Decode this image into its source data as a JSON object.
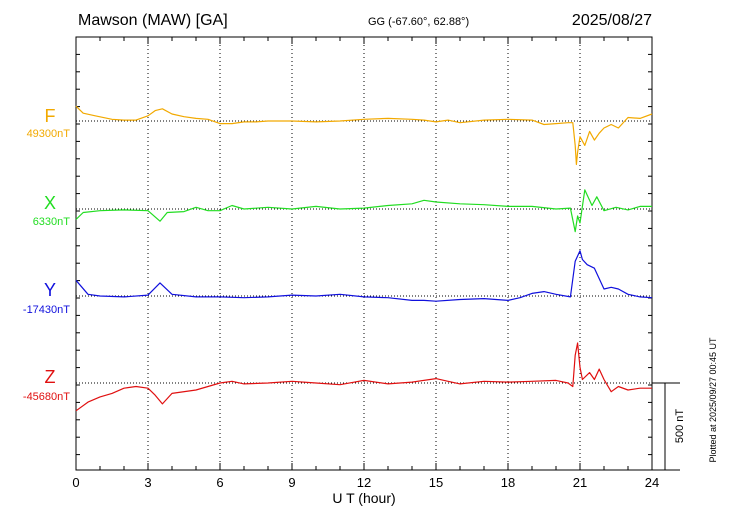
{
  "header": {
    "station": "Mawson (MAW)  [GA]",
    "coords": "GG (-67.60°,  62.88°)",
    "date": "2025/08/27"
  },
  "footer": {
    "plotted": "Plotted at 2025/09/27 00:45 UT"
  },
  "chart_data": {
    "type": "line",
    "title": "Mawson (MAW)  [GA]",
    "xlabel": "U T (hour)",
    "ylabel": "",
    "xlim": [
      0,
      24
    ],
    "x_ticks": [
      "0",
      "3",
      "6",
      "9",
      "12",
      "15",
      "18",
      "21",
      "24"
    ],
    "grid": "dotted vertical every 3 h",
    "scale_bar": {
      "label": "500 nT",
      "value_nT": 500
    },
    "series": [
      {
        "name": "F",
        "baseline_label": "49300nT",
        "baseline_nT": 49300,
        "color": "#f2a900",
        "points": [
          [
            0,
            85
          ],
          [
            0.3,
            45
          ],
          [
            0.8,
            30
          ],
          [
            1.5,
            10
          ],
          [
            2,
            5
          ],
          [
            2.5,
            5
          ],
          [
            3,
            30
          ],
          [
            3.3,
            60
          ],
          [
            3.6,
            70
          ],
          [
            4,
            40
          ],
          [
            4.5,
            25
          ],
          [
            5,
            15
          ],
          [
            5.5,
            10
          ],
          [
            6,
            -15
          ],
          [
            6.5,
            -15
          ],
          [
            7,
            -5
          ],
          [
            7.5,
            -5
          ],
          [
            8,
            0
          ],
          [
            9,
            0
          ],
          [
            10,
            -5
          ],
          [
            11,
            0
          ],
          [
            12,
            10
          ],
          [
            13,
            15
          ],
          [
            14,
            10
          ],
          [
            14.5,
            5
          ],
          [
            15,
            -5
          ],
          [
            15.5,
            5
          ],
          [
            16,
            -10
          ],
          [
            17,
            5
          ],
          [
            18,
            10
          ],
          [
            19,
            5
          ],
          [
            19.5,
            -20
          ],
          [
            20,
            -15
          ],
          [
            20.5,
            -10
          ],
          [
            20.7,
            -10
          ],
          [
            20.8,
            -140
          ],
          [
            20.85,
            -250
          ],
          [
            20.9,
            -180
          ],
          [
            21,
            -90
          ],
          [
            21.2,
            -140
          ],
          [
            21.4,
            -60
          ],
          [
            21.6,
            -110
          ],
          [
            21.8,
            -70
          ],
          [
            22,
            -40
          ],
          [
            22.3,
            -20
          ],
          [
            22.6,
            -40
          ],
          [
            23,
            20
          ],
          [
            23.5,
            15
          ],
          [
            24,
            40
          ]
        ]
      },
      {
        "name": "X",
        "baseline_label": "6330nT",
        "baseline_nT": 6330,
        "color": "#22dd22",
        "points": [
          [
            0,
            -60
          ],
          [
            0.3,
            -20
          ],
          [
            1,
            -10
          ],
          [
            2,
            -5
          ],
          [
            3,
            -10
          ],
          [
            3.5,
            -70
          ],
          [
            3.8,
            -20
          ],
          [
            4.5,
            -15
          ],
          [
            5,
            10
          ],
          [
            5.5,
            -10
          ],
          [
            6,
            -10
          ],
          [
            6.5,
            20
          ],
          [
            7,
            0
          ],
          [
            8,
            10
          ],
          [
            9,
            0
          ],
          [
            10,
            15
          ],
          [
            11,
            0
          ],
          [
            12,
            5
          ],
          [
            13,
            20
          ],
          [
            14,
            30
          ],
          [
            14.5,
            50
          ],
          [
            15,
            40
          ],
          [
            16,
            30
          ],
          [
            17,
            25
          ],
          [
            18,
            15
          ],
          [
            19,
            15
          ],
          [
            20,
            0
          ],
          [
            20.6,
            5
          ],
          [
            20.8,
            -130
          ],
          [
            20.9,
            -40
          ],
          [
            21,
            -80
          ],
          [
            21.2,
            110
          ],
          [
            21.5,
            20
          ],
          [
            21.7,
            70
          ],
          [
            22,
            -10
          ],
          [
            22.5,
            10
          ],
          [
            23,
            -5
          ],
          [
            23.5,
            15
          ],
          [
            24,
            15
          ]
        ]
      },
      {
        "name": "Y",
        "baseline_label": "-17430nT",
        "baseline_nT": -17430,
        "color": "#1010dd",
        "points": [
          [
            0,
            90
          ],
          [
            0.5,
            10
          ],
          [
            1,
            0
          ],
          [
            2,
            -5
          ],
          [
            3,
            5
          ],
          [
            3.5,
            75
          ],
          [
            4,
            10
          ],
          [
            5,
            -5
          ],
          [
            6,
            -5
          ],
          [
            7,
            -10
          ],
          [
            8,
            -5
          ],
          [
            9,
            5
          ],
          [
            10,
            0
          ],
          [
            11,
            10
          ],
          [
            12,
            -5
          ],
          [
            13,
            -10
          ],
          [
            14,
            -25
          ],
          [
            14.5,
            -25
          ],
          [
            15,
            -30
          ],
          [
            16,
            -20
          ],
          [
            17,
            -15
          ],
          [
            18,
            -25
          ],
          [
            18.5,
            -10
          ],
          [
            19,
            15
          ],
          [
            19.5,
            25
          ],
          [
            20,
            10
          ],
          [
            20.6,
            -5
          ],
          [
            20.8,
            200
          ],
          [
            21,
            260
          ],
          [
            21.1,
            210
          ],
          [
            21.3,
            180
          ],
          [
            21.6,
            160
          ],
          [
            22,
            40
          ],
          [
            22.3,
            50
          ],
          [
            22.6,
            40
          ],
          [
            23,
            10
          ],
          [
            23.5,
            -5
          ],
          [
            24,
            -10
          ]
        ]
      },
      {
        "name": "Z",
        "baseline_label": "-45680nT",
        "baseline_nT": -45680,
        "color": "#e01010",
        "points": [
          [
            0,
            -160
          ],
          [
            0.5,
            -110
          ],
          [
            1,
            -80
          ],
          [
            1.5,
            -60
          ],
          [
            2,
            -30
          ],
          [
            2.5,
            -20
          ],
          [
            3,
            -30
          ],
          [
            3.3,
            -70
          ],
          [
            3.6,
            -120
          ],
          [
            4,
            -60
          ],
          [
            5,
            -40
          ],
          [
            6,
            0
          ],
          [
            6.5,
            10
          ],
          [
            7,
            -5
          ],
          [
            8,
            0
          ],
          [
            9,
            10
          ],
          [
            10,
            0
          ],
          [
            11,
            -10
          ],
          [
            12,
            15
          ],
          [
            13,
            -5
          ],
          [
            14,
            5
          ],
          [
            15,
            25
          ],
          [
            15.5,
            10
          ],
          [
            16,
            -5
          ],
          [
            17,
            10
          ],
          [
            18,
            5
          ],
          [
            19,
            10
          ],
          [
            20,
            15
          ],
          [
            20.5,
            0
          ],
          [
            20.7,
            -20
          ],
          [
            20.8,
            160
          ],
          [
            20.9,
            230
          ],
          [
            21,
            90
          ],
          [
            21.1,
            20
          ],
          [
            21.4,
            60
          ],
          [
            21.6,
            20
          ],
          [
            21.8,
            80
          ],
          [
            22,
            20
          ],
          [
            22.3,
            -50
          ],
          [
            22.6,
            -20
          ],
          [
            23,
            -40
          ],
          [
            23.5,
            -30
          ],
          [
            24,
            -30
          ]
        ]
      }
    ]
  }
}
